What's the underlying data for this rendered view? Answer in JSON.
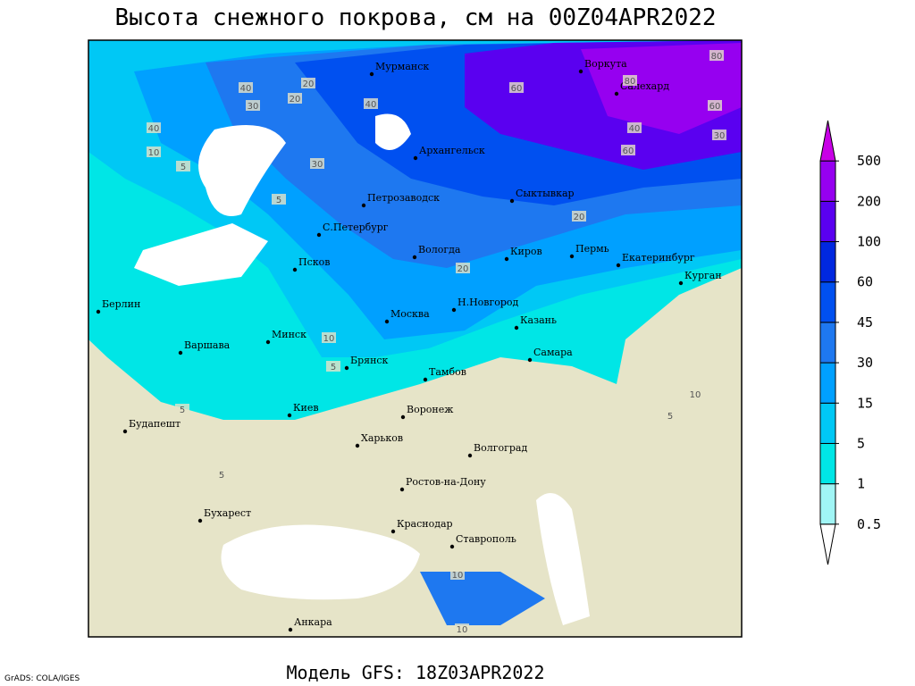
{
  "title": "Высота снежного покрова, см на 00Z04APR2022",
  "footer": "Модель GFS: 18Z03APR2022",
  "credit": "GrADS: COLA/IGES",
  "cities": [
    "Мурманск",
    "Воркута",
    "Салехард",
    "Архангельск",
    "Петрозаводск",
    "Сыктывкар",
    "С.Петербург",
    "Вологда",
    "Киров",
    "Пермь",
    "Екатеринбург",
    "Псков",
    "Курган",
    "Берлин",
    "Н.Новгород",
    "Москва",
    "Казань",
    "Минск",
    "Варшава",
    "Самара",
    "Брянск",
    "Тамбов",
    "Киев",
    "Воронеж",
    "Будапешт",
    "Харьков",
    "Волгоград",
    "Ростов-на-Дону",
    "Бухарест",
    "Краснодар",
    "Ставрополь",
    "Анкара"
  ],
  "contour_labels": [
    "40",
    "20",
    "20",
    "40",
    "30",
    "40",
    "10",
    "5",
    "60",
    "80",
    "80",
    "60",
    "40",
    "60",
    "30",
    "20",
    "30",
    "5",
    "20",
    "10",
    "5",
    "10",
    "5",
    "5",
    "10",
    "10",
    "5"
  ],
  "legend": {
    "levels": [
      0.5,
      1,
      5,
      15,
      30,
      45,
      60,
      100,
      200,
      500
    ],
    "colors": [
      "#ffffff",
      "#a0f5f5",
      "#00e6e6",
      "#00c8f5",
      "#00a0ff",
      "#1e78f0",
      "#0050f0",
      "#0028e0",
      "#5a00f0",
      "#9600f0",
      "#c800e6"
    ]
  }
}
